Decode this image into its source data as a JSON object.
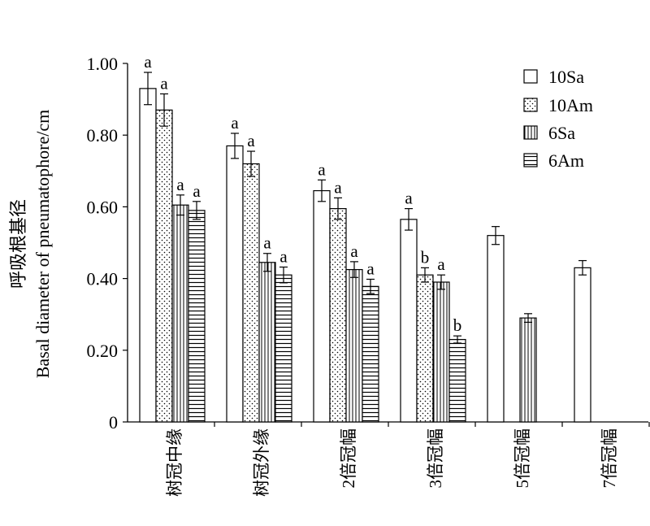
{
  "chart_data": {
    "type": "bar",
    "ylabel_cn": "呼吸根基径",
    "ylabel": "Basal diameter of pneumatophore/cm",
    "xlabel": "",
    "ylim": [
      0,
      1.0
    ],
    "yticks": [
      "0",
      "0.20",
      "0.40",
      "0.60",
      "0.80",
      "1.00"
    ],
    "categories": [
      "树冠中缘",
      "树冠外缘",
      "2倍冠幅",
      "3倍冠幅",
      "5倍冠幅",
      "7倍冠幅"
    ],
    "legend_position": "top-right",
    "series": [
      {
        "name": "10Sa",
        "pattern": "open",
        "values": [
          0.93,
          0.77,
          0.645,
          0.565,
          0.52,
          0.43
        ],
        "errors": [
          0.045,
          0.035,
          0.03,
          0.03,
          0.025,
          0.02
        ],
        "letters": [
          "a",
          "a",
          "a",
          "a",
          "",
          ""
        ]
      },
      {
        "name": "10Am",
        "pattern": "dotted",
        "values": [
          0.87,
          0.72,
          0.595,
          0.41,
          null,
          null
        ],
        "errors": [
          0.045,
          0.035,
          0.03,
          0.02,
          null,
          null
        ],
        "letters": [
          "a",
          "a",
          "a",
          "b",
          "",
          ""
        ]
      },
      {
        "name": "6Sa",
        "pattern": "vertical-lines",
        "values": [
          0.605,
          0.445,
          0.425,
          0.39,
          0.29,
          null
        ],
        "errors": [
          0.028,
          0.025,
          0.022,
          0.02,
          0.012,
          null
        ],
        "letters": [
          "a",
          "a",
          "a",
          "a",
          "",
          ""
        ]
      },
      {
        "name": "6Am",
        "pattern": "horizontal-lines",
        "values": [
          0.59,
          0.41,
          0.378,
          0.23,
          null,
          null
        ],
        "errors": [
          0.025,
          0.022,
          0.02,
          0.01,
          null,
          null
        ],
        "letters": [
          "a",
          "a",
          "a",
          "b",
          "",
          ""
        ]
      }
    ]
  }
}
